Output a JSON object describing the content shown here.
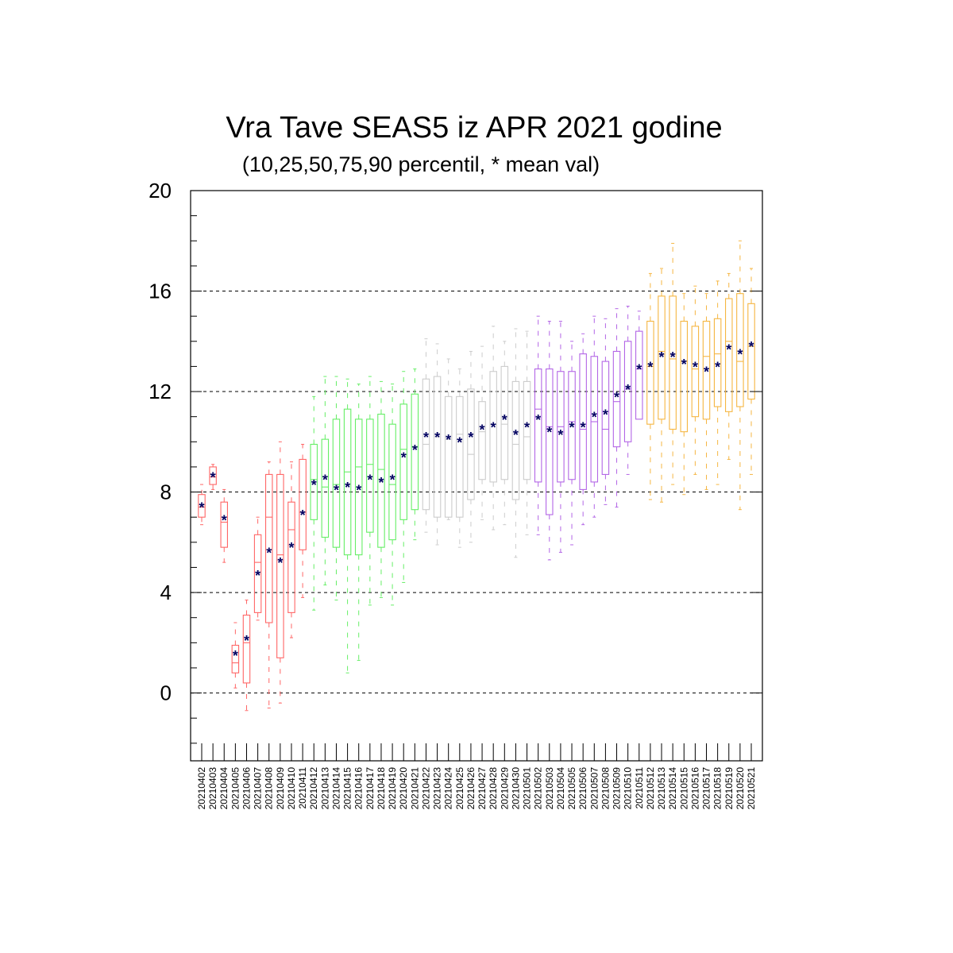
{
  "chart_data": {
    "type": "box",
    "title": "Vra Tave SEAS5 iz APR 2021 godine",
    "subtitle": "(10,25,50,75,90 percentil, * mean val)",
    "xlabel": "",
    "ylabel": "",
    "ylim": [
      -2.7,
      20
    ],
    "yticks": [
      0,
      4,
      8,
      12,
      16,
      20
    ],
    "grid": true,
    "mean_marker": "*",
    "group_colors": [
      "#ff6666",
      "#66ee66",
      "#cccccc",
      "#b366e6",
      "#f5b642"
    ],
    "categories": [
      "20210402",
      "20210403",
      "20210404",
      "20210405",
      "20210406",
      "20210407",
      "20210408",
      "20210409",
      "20210410",
      "20210411",
      "20210412",
      "20210413",
      "20210414",
      "20210415",
      "20210416",
      "20210417",
      "20210418",
      "20210419",
      "20210420",
      "20210421",
      "20210422",
      "20210423",
      "20210424",
      "20210425",
      "20210426",
      "20210427",
      "20210428",
      "20210429",
      "20210430",
      "20210501",
      "20210502",
      "20210503",
      "20210504",
      "20210505",
      "20210506",
      "20210507",
      "20210508",
      "20210509",
      "20210510",
      "20210511",
      "20210512",
      "20210513",
      "20210514",
      "20210515",
      "20210516",
      "20210517",
      "20210518",
      "20210519",
      "20210520",
      "20210521"
    ],
    "group": [
      0,
      0,
      0,
      0,
      0,
      0,
      0,
      0,
      0,
      0,
      1,
      1,
      1,
      1,
      1,
      1,
      1,
      1,
      1,
      1,
      2,
      2,
      2,
      2,
      2,
      2,
      2,
      2,
      2,
      2,
      3,
      3,
      3,
      3,
      3,
      3,
      3,
      3,
      3,
      3,
      4,
      4,
      4,
      4,
      4,
      4,
      4,
      4,
      4,
      4
    ],
    "p10": [
      6.7,
      8.1,
      5.2,
      0.2,
      -0.7,
      2.9,
      -0.6,
      -0.4,
      2.2,
      3.8,
      3.3,
      4.3,
      3.7,
      0.8,
      1.3,
      3.5,
      3.8,
      3.5,
      4.4,
      6.1,
      6.4,
      5.9,
      6.9,
      5.8,
      6.0,
      6.9,
      6.5,
      6.7,
      5.4,
      6.3,
      6.3,
      5.3,
      5.6,
      5.9,
      6.7,
      7.0,
      7.5,
      7.4,
      8.7,
      null,
      7.7,
      7.6,
      8.3,
      7.9,
      8.7,
      8.1,
      8.3,
      9.3,
      7.3,
      8.7
    ],
    "p25": [
      7.0,
      8.3,
      5.8,
      0.8,
      0.4,
      3.2,
      2.8,
      1.4,
      3.2,
      5.7,
      6.9,
      6.2,
      5.8,
      5.5,
      5.5,
      6.4,
      5.8,
      6.1,
      6.9,
      7.3,
      7.3,
      7.0,
      7.0,
      7.0,
      7.7,
      8.5,
      8.4,
      8.5,
      7.7,
      8.5,
      8.4,
      7.1,
      8.4,
      8.5,
      8.1,
      8.4,
      8.7,
      9.8,
      10.0,
      10.9,
      10.7,
      10.9,
      10.5,
      10.4,
      11.0,
      10.9,
      11.4,
      11.2,
      11.4,
      11.7
    ],
    "p50": [
      7.4,
      8.6,
      6.8,
      1.2,
      2.0,
      5.2,
      7.0,
      5.5,
      6.5,
      7.2,
      8.5,
      8.2,
      8.3,
      8.8,
      9.0,
      9.1,
      8.9,
      8.3,
      9.7,
      9.8,
      9.9,
      10.2,
      10.1,
      10.3,
      9.5,
      10.4,
      10.7,
      10.7,
      9.9,
      10.2,
      11.3,
      10.6,
      10.6,
      10.8,
      10.5,
      10.8,
      10.5,
      11.6,
      12.1,
      12.9,
      13.0,
      13.6,
      13.3,
      13.2,
      12.9,
      13.4,
      13.5,
      14.0,
      13.2,
      13.8
    ],
    "p75": [
      7.9,
      9.0,
      7.6,
      1.9,
      3.1,
      6.3,
      8.7,
      8.7,
      7.6,
      9.3,
      9.9,
      10.1,
      10.9,
      11.3,
      10.9,
      10.9,
      11.1,
      10.7,
      11.5,
      11.9,
      12.5,
      12.6,
      11.8,
      11.8,
      12.1,
      11.6,
      12.8,
      13.0,
      12.4,
      12.4,
      12.9,
      12.9,
      12.8,
      12.8,
      13.5,
      13.4,
      13.2,
      13.6,
      14.0,
      14.4,
      14.8,
      15.8,
      15.8,
      14.8,
      14.6,
      14.8,
      14.9,
      15.7,
      15.9,
      15.5
    ],
    "p90": [
      8.3,
      9.1,
      8.1,
      2.8,
      3.7,
      7.0,
      9.2,
      10.0,
      9.2,
      9.9,
      11.8,
      12.6,
      12.6,
      12.5,
      12.3,
      12.6,
      12.4,
      12.3,
      12.8,
      12.9,
      14.1,
      13.9,
      13.3,
      12.9,
      13.6,
      13.8,
      14.6,
      14.0,
      14.5,
      14.4,
      15.0,
      14.8,
      14.8,
      14.0,
      14.3,
      15.0,
      14.9,
      15.3,
      15.4,
      15.2,
      16.7,
      16.9,
      17.9,
      15.9,
      16.2,
      15.9,
      16.4,
      16.7,
      18.0,
      16.9
    ],
    "mean": [
      7.4,
      8.6,
      6.9,
      1.5,
      2.1,
      4.7,
      5.6,
      5.2,
      5.8,
      7.1,
      8.3,
      8.5,
      8.1,
      8.2,
      8.1,
      8.5,
      8.4,
      8.5,
      9.4,
      9.7,
      10.2,
      10.2,
      10.1,
      10.0,
      10.2,
      10.5,
      10.6,
      10.9,
      10.3,
      10.6,
      10.9,
      10.4,
      10.3,
      10.6,
      10.6,
      11.0,
      11.1,
      11.8,
      12.1,
      12.9,
      13.0,
      13.4,
      13.4,
      13.1,
      13.0,
      12.8,
      13.0,
      13.7,
      13.5,
      13.8
    ]
  }
}
